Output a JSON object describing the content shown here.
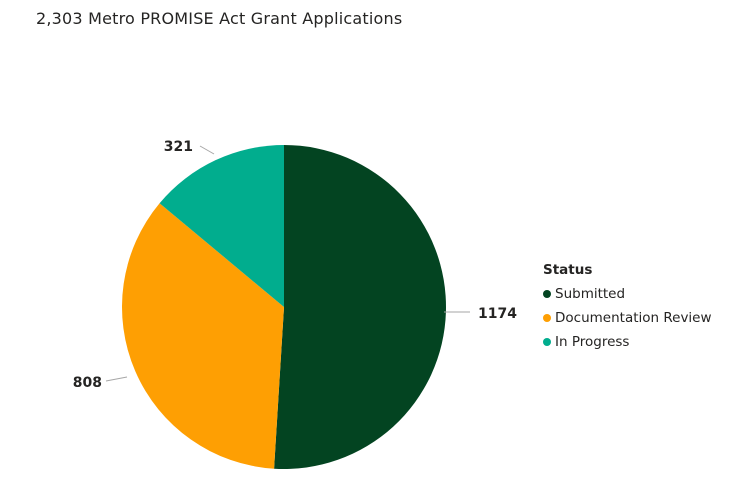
{
  "chart_title": "2,303 Metro PROMISE Act Grant Applications",
  "chart_data": {
    "type": "pie",
    "title": "2,303 Metro PROMISE Act Grant Applications",
    "slices": [
      {
        "label": "Submitted",
        "value": 1174,
        "color": "#034421"
      },
      {
        "label": "Documentation Review",
        "value": 808,
        "color": "#FE9F03"
      },
      {
        "label": "In Progress",
        "value": 321,
        "color": "#01AD8E"
      }
    ],
    "legend_title": "Status",
    "legend_position": "right"
  }
}
